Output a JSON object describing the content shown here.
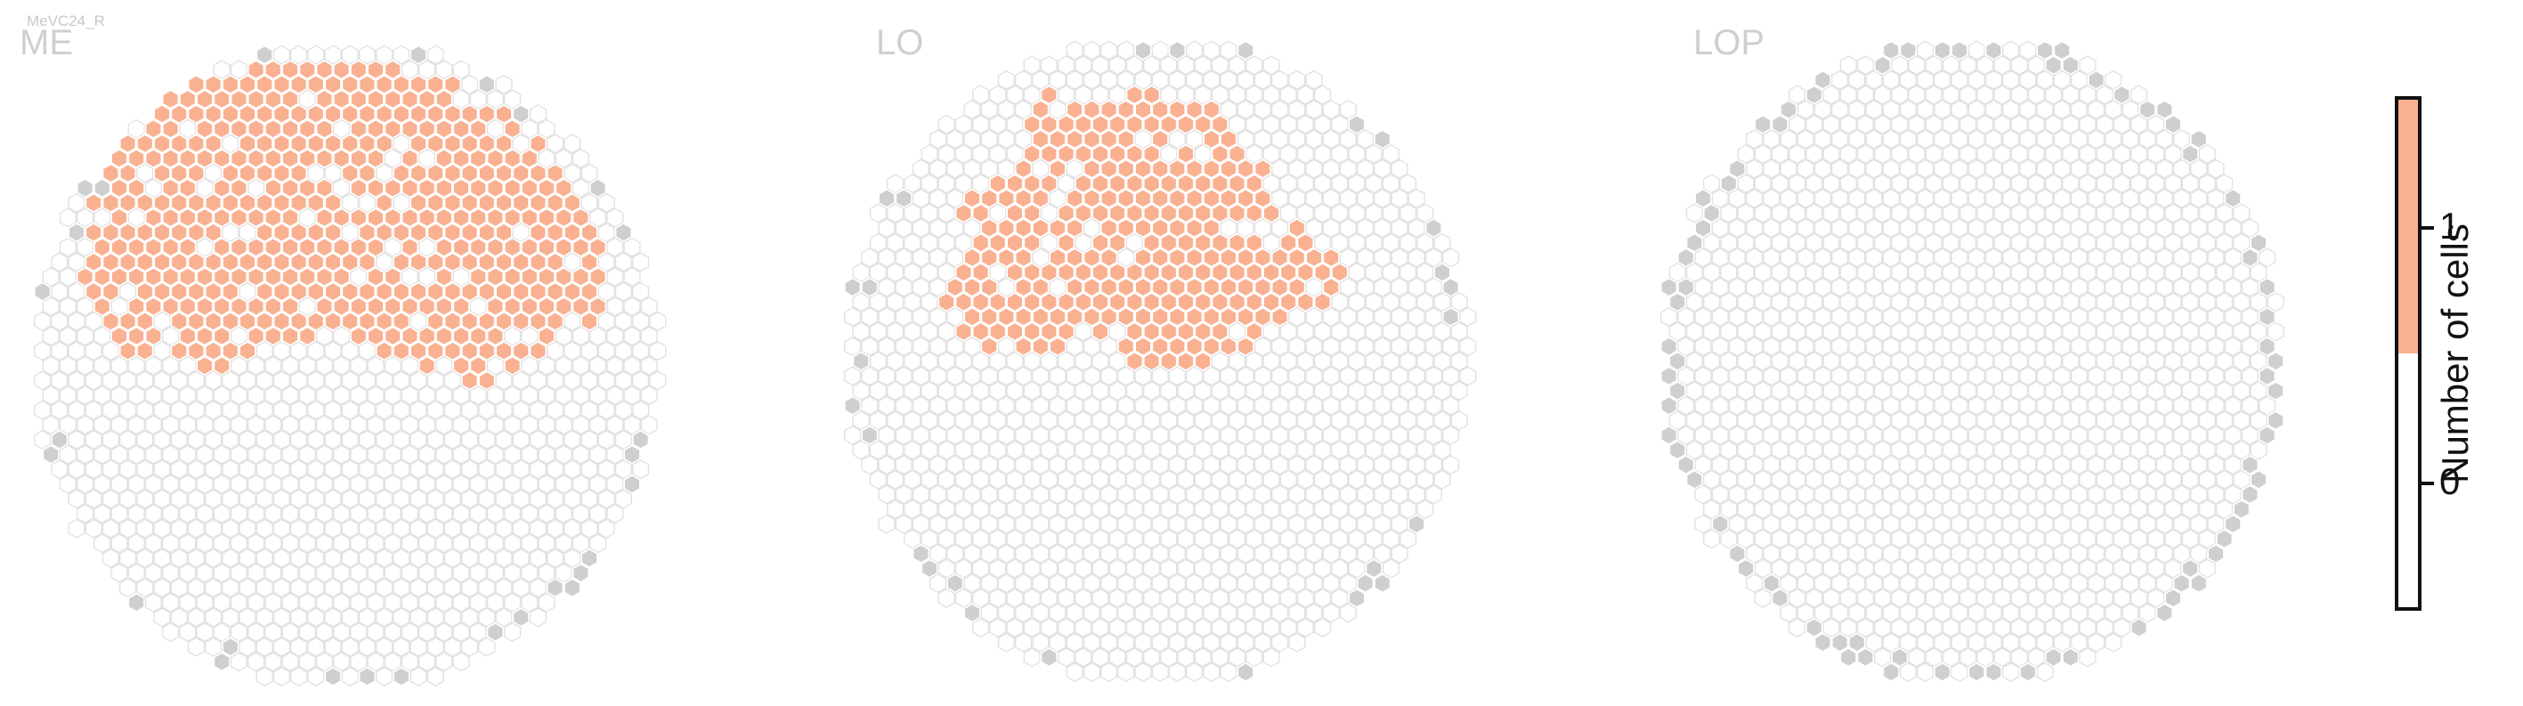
{
  "header": {
    "tiny_label": "MeVC24_R"
  },
  "panels": [
    {
      "id": "me",
      "title": "ME"
    },
    {
      "id": "lo",
      "title": "LO"
    },
    {
      "id": "lop",
      "title": "LOP"
    }
  ],
  "colorbar": {
    "label": "Number of cells",
    "ticks": [
      {
        "value": 1,
        "label": "1"
      },
      {
        "value": 0,
        "label": "0"
      }
    ],
    "bins": [
      {
        "value": 0,
        "color": "#ffffff"
      },
      {
        "value": 1,
        "color": "#f9b191"
      }
    ]
  },
  "colors": {
    "filled": "#f9b191",
    "empty_stroke": "#e2e2e2",
    "edge_gray": "#cfcfcf"
  }
}
